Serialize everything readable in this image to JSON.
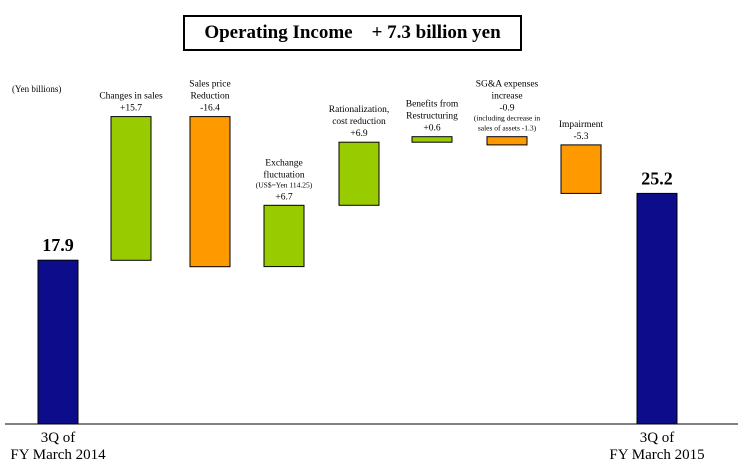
{
  "chart_data": {
    "type": "bar",
    "subtype": "waterfall",
    "title": "Operating Income    + 7.3 billion yen",
    "unit_label": "(Yen billions)",
    "colors": {
      "total": "#0d0d8c",
      "increase": "#99cc00",
      "decrease": "#ff9900",
      "edge": "#000000"
    },
    "bars": [
      {
        "kind": "total",
        "value": 17.9,
        "label_lines": [
          "17.9"
        ],
        "axis_lines": [
          "3Q of",
          "FY March 2014"
        ]
      },
      {
        "kind": "delta",
        "value": 15.7,
        "label_lines": [
          "Changes  in sales",
          "+15.7"
        ]
      },
      {
        "kind": "delta",
        "value": -16.4,
        "label_lines": [
          "Sales price",
          "Reduction",
          "-16.4"
        ]
      },
      {
        "kind": "delta",
        "value": 6.7,
        "label_lines": [
          "Exchange",
          "fluctuation",
          "(US$=Yen 114.25)",
          "+6.7"
        ]
      },
      {
        "kind": "delta",
        "value": 6.9,
        "label_lines": [
          "Rationalization,",
          "cost reduction",
          "+6.9"
        ]
      },
      {
        "kind": "delta",
        "value": 0.6,
        "label_lines": [
          "Benefits from",
          "Restructuring",
          "+0.6"
        ]
      },
      {
        "kind": "delta",
        "value": -0.9,
        "label_lines": [
          "SG&A expenses",
          "increase",
          "-0.9",
          "(including  decrease in",
          "sales of assets -1.3)"
        ]
      },
      {
        "kind": "delta",
        "value": -5.3,
        "label_lines": [
          "Impairment",
          "-5.3"
        ]
      },
      {
        "kind": "total",
        "value": 25.2,
        "label_lines": [
          "25.2"
        ],
        "axis_lines": [
          "3Q of",
          "FY March 2015"
        ]
      }
    ]
  }
}
